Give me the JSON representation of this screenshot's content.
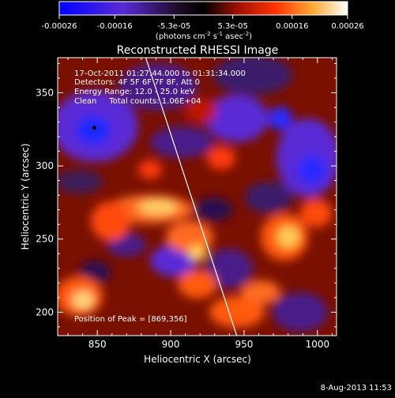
{
  "chart_data": {
    "type": "heatmap",
    "title": "Reconstructed RHESSI Image",
    "xlabel": "Heliocentric X (arcsec)",
    "ylabel": "Heliocentric Y (arcsec)",
    "xlim": [
      823,
      1013
    ],
    "ylim": [
      184,
      374
    ],
    "x_ticks": [
      850,
      900,
      950,
      1000
    ],
    "y_ticks": [
      200,
      250,
      300,
      350
    ],
    "colorbar": {
      "range": [
        -0.00026,
        0.00026
      ],
      "ticks": [
        "-0.00026",
        "-0.00016",
        "-5.3e-05",
        "5.3e-05",
        "0.00016",
        "0.00026"
      ],
      "tick_values": [
        -0.00026,
        -0.00016,
        -5.3e-05,
        5.3e-05,
        0.00016,
        0.00026
      ],
      "label_main": "(photons cm",
      "label_exp1": "-2",
      "label_mid": " s",
      "label_exp2": "-1",
      "label_end": " asec",
      "label_exp3": "-2",
      "label_close": ")",
      "colors": [
        "#0000ff",
        "#6633cc",
        "#000000",
        "#ff3300",
        "#ffcc44",
        "#ffffff"
      ]
    },
    "annotations": {
      "line1": "17-Oct-2011 01:27:44.000 to 01:31:34.000",
      "line2": "Detectors: 4F 5F 6F 7F 8F, Att 0",
      "line3": "Energy Range: 12.0 - 25.0 keV",
      "line4": "Clean     Total counts: 1.06E+04",
      "peak": "Position of Peak = [869,356]"
    },
    "limb_curve": {
      "points": [
        [
          883,
          374
        ],
        [
          945,
          184
        ]
      ]
    },
    "minimum_marker": {
      "x": 848,
      "y": 326
    },
    "colormap_note": "Diverging map: blue/violet negative through black to red, orange, yellow, white positive",
    "footer_date": "8-Aug-2013 11:53"
  }
}
